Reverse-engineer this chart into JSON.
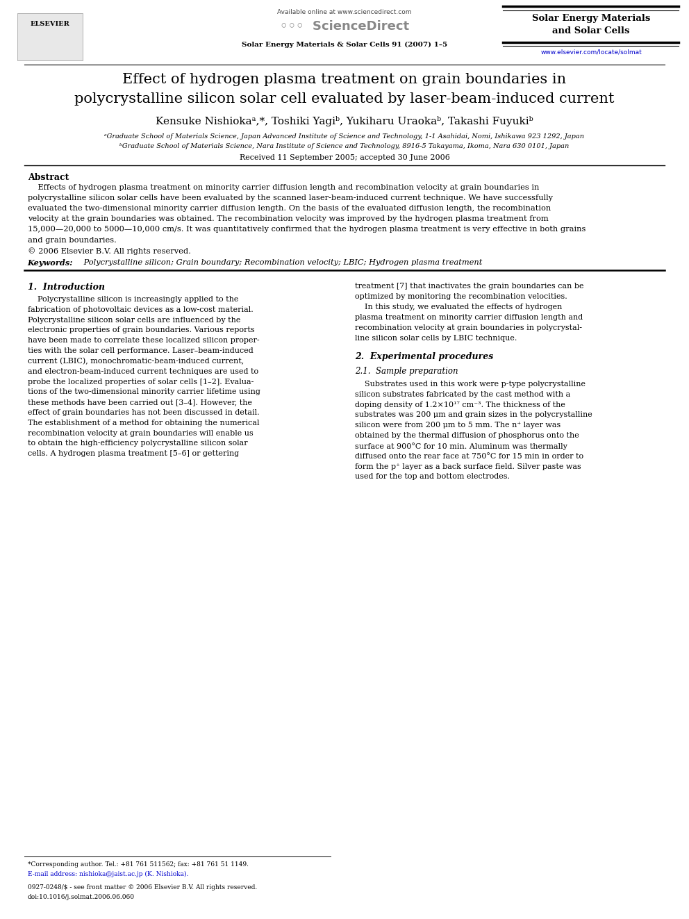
{
  "page_width": 9.92,
  "page_height": 13.23,
  "bg_color": "#ffffff",
  "available_online": "Available online at www.sciencedirect.com",
  "journal_name_header": "Solar Energy Materials & Solar Cells 91 (2007) 1–5",
  "journal_title_right": "Solar Energy Materials\nand Solar Cells",
  "url_right": "www.elsevier.com/locate/solmat",
  "url_color": "#0000cc",
  "title": "Effect of hydrogen plasma treatment on grain boundaries in\npolycrystalline silicon solar cell evaluated by laser-beam-induced current",
  "authors": "Kensuke Nishiokaᵃ,*, Toshiki Yagiᵇ, Yukiharu Uraokaᵇ, Takashi Fuyukiᵇ",
  "affiliation_a": "ᵃGraduate School of Materials Science, Japan Advanced Institute of Science and Technology, 1-1 Asahidai, Nomi, Ishikawa 923 1292, Japan",
  "affiliation_b": "ᵇGraduate School of Materials Science, Nara Institute of Science and Technology, 8916-5 Takayama, Ikoma, Nara 630 0101, Japan",
  "received": "Received 11 September 2005; accepted 30 June 2006",
  "abstract_title": "Abstract",
  "abstract_lines": [
    "    Effects of hydrogen plasma treatment on minority carrier diffusion length and recombination velocity at grain boundaries in",
    "polycrystalline silicon solar cells have been evaluated by the scanned laser-beam-induced current technique. We have successfully",
    "evaluated the two-dimensional minority carrier diffusion length. On the basis of the evaluated diffusion length, the recombination",
    "velocity at the grain boundaries was obtained. The recombination velocity was improved by the hydrogen plasma treatment from",
    "15,000—20,000 to 5000—10,000 cm/s. It was quantitatively confirmed that the hydrogen plasma treatment is very effective in both grains",
    "and grain boundaries.",
    "© 2006 Elsevier B.V. All rights reserved."
  ],
  "keywords_label": "Keywords:",
  "keywords_text": " Polycrystalline silicon; Grain boundary; Recombination velocity; LBIC; Hydrogen plasma treatment",
  "s1_title": "1.  Introduction",
  "s1_col1_lines": [
    "    Polycrystalline silicon is increasingly applied to the",
    "fabrication of photovoltaic devices as a low-cost material.",
    "Polycrystalline silicon solar cells are influenced by the",
    "electronic properties of grain boundaries. Various reports",
    "have been made to correlate these localized silicon proper-",
    "ties with the solar cell performance. Laser–beam-induced",
    "current (LBIC), monochromatic-beam-induced current,",
    "and electron-beam-induced current techniques are used to",
    "probe the localized properties of solar cells [1–2]. Evalua-",
    "tions of the two-dimensional minority carrier lifetime using",
    "these methods have been carried out [3–4]. However, the",
    "effect of grain boundaries has not been discussed in detail.",
    "The establishment of a method for obtaining the numerical",
    "recombination velocity at grain boundaries will enable us",
    "to obtain the high-efficiency polycrystalline silicon solar",
    "cells. A hydrogen plasma treatment [5–6] or gettering"
  ],
  "s1_col2_lines": [
    "treatment [7] that inactivates the grain boundaries can be",
    "optimized by monitoring the recombination velocities.",
    "    In this study, we evaluated the effects of hydrogen",
    "plasma treatment on minority carrier diffusion length and",
    "recombination velocity at grain boundaries in polycrystal-",
    "line silicon solar cells by LBIC technique."
  ],
  "s2_title": "2.  Experimental procedures",
  "s21_title": "2.1.  Sample preparation",
  "s2_col2_lines": [
    "    Substrates used in this work were p-type polycrystalline",
    "silicon substrates fabricated by the cast method with a",
    "doping density of 1.2×10¹⁷ cm⁻³. The thickness of the",
    "substrates was 200 μm and grain sizes in the polycrystalline",
    "silicon were from 200 μm to 5 mm. The n⁺ layer was",
    "obtained by the thermal diffusion of phosphorus onto the",
    "surface at 900°C for 10 min. Aluminum was thermally",
    "diffused onto the rear face at 750°C for 15 min in order to",
    "form the p⁺ layer as a back surface field. Silver paste was",
    "used for the top and bottom electrodes."
  ],
  "footer_line1": "*Corresponding author. Tel.: +81 761 511562; fax: +81 761 51 1149.",
  "footer_line2": "E-mail address: nishioka@jaist.ac.jp (K. Nishioka).",
  "footer_line3": "0927-0248/$ - see front matter © 2006 Elsevier B.V. All rights reserved.",
  "footer_line4": "doi:10.1016/j.solmat.2006.06.060"
}
